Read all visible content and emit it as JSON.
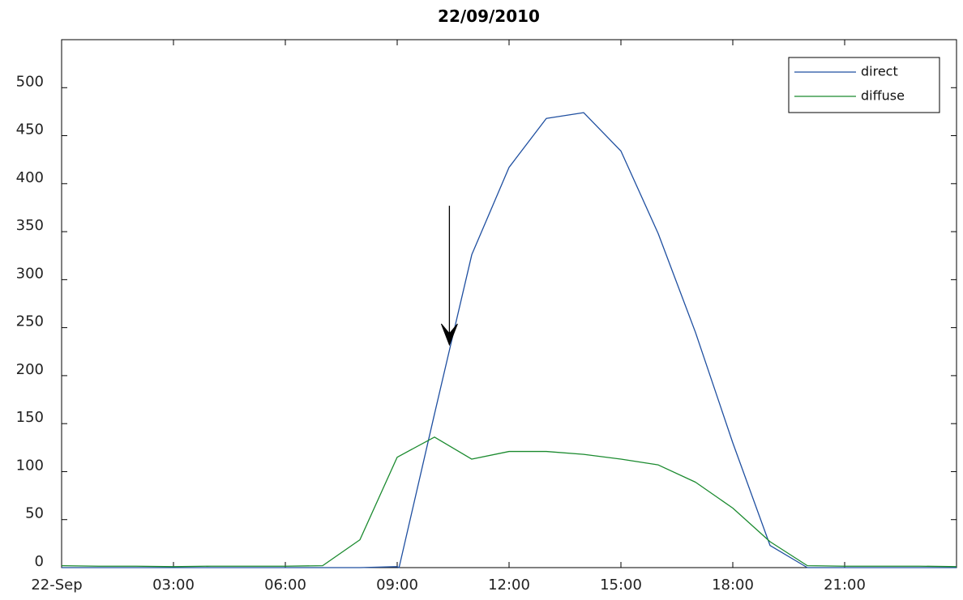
{
  "chart_data": {
    "type": "line",
    "title": "22/09/2010",
    "xlabel": "",
    "ylabel": "",
    "xlim": [
      0,
      24
    ],
    "ylim": [
      0,
      550
    ],
    "x_ticks": [
      {
        "value": 0,
        "label": "22-Sep"
      },
      {
        "value": 3,
        "label": "03:00"
      },
      {
        "value": 6,
        "label": "06:00"
      },
      {
        "value": 9,
        "label": "09:00"
      },
      {
        "value": 12,
        "label": "12:00"
      },
      {
        "value": 15,
        "label": "15:00"
      },
      {
        "value": 18,
        "label": "18:00"
      },
      {
        "value": 21,
        "label": "21:00"
      }
    ],
    "y_ticks": [
      0,
      50,
      100,
      150,
      200,
      250,
      300,
      350,
      400,
      450,
      500
    ],
    "grid": false,
    "legend": "top-right",
    "series": [
      {
        "name": "direct",
        "color": "#1f4fa0",
        "x": [
          0,
          1,
          2,
          3,
          4,
          5,
          6,
          7,
          8,
          9,
          9.05,
          10,
          11,
          12,
          13,
          14,
          15,
          16,
          17,
          18,
          19,
          20,
          21,
          22,
          23,
          24
        ],
        "y": [
          0,
          0,
          0,
          0,
          0,
          0,
          0,
          0,
          0,
          1,
          0,
          160,
          326,
          417,
          468,
          474,
          434,
          348,
          245,
          130,
          23,
          0,
          0,
          0,
          0,
          0
        ]
      },
      {
        "name": "diffuse",
        "color": "#1a8a2e",
        "x": [
          0,
          1,
          2,
          3,
          4,
          5,
          6,
          7,
          8,
          9,
          10,
          11,
          12,
          13,
          14,
          15,
          16,
          17,
          18,
          19,
          20,
          21,
          22,
          23,
          24
        ],
        "y": [
          2,
          1.5,
          1.5,
          1,
          1.5,
          1.5,
          1.5,
          2,
          29,
          115,
          136,
          113,
          121,
          121,
          118,
          113,
          107,
          89,
          62,
          27,
          2,
          1.5,
          1.5,
          1.5,
          1
        ]
      }
    ],
    "annotations": [
      {
        "type": "arrow",
        "x": 10.4,
        "y_from": 377,
        "y_to": 232,
        "color": "#000000"
      }
    ]
  }
}
